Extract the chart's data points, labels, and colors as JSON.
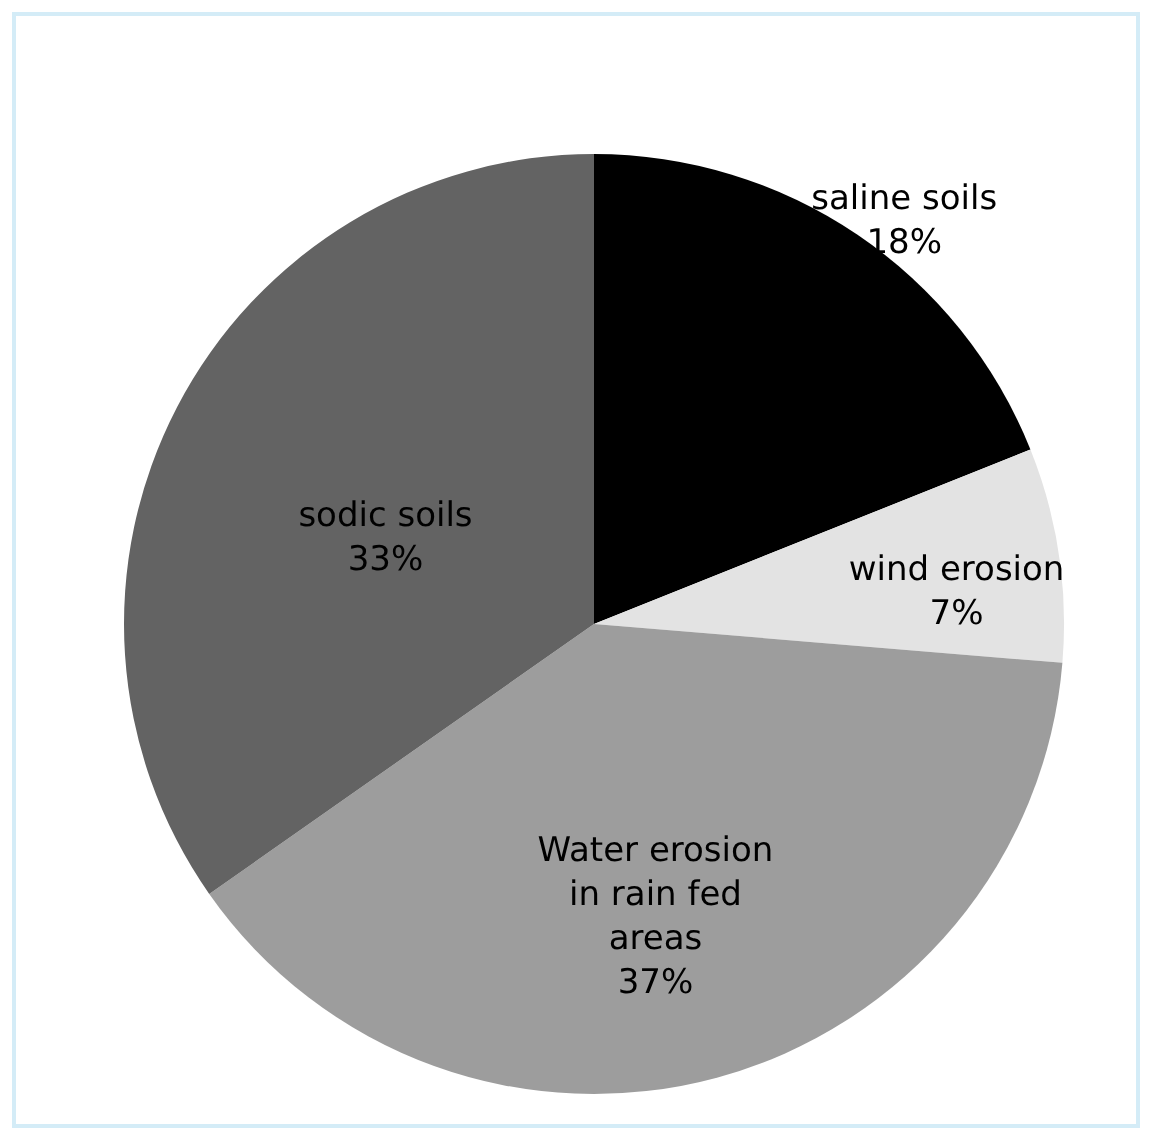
{
  "chart_data": {
    "type": "pie",
    "categories": [
      "saline soils",
      "wind erosion",
      "Water erosion in rain fed areas",
      "sodic soils"
    ],
    "values": [
      18,
      7,
      37,
      33
    ],
    "colors": [
      "#000000",
      "#e3e3e3",
      "#9d9d9d",
      "#636363"
    ],
    "value_labels": [
      "18%",
      "7%",
      "37%",
      "33%"
    ],
    "legend": false
  }
}
